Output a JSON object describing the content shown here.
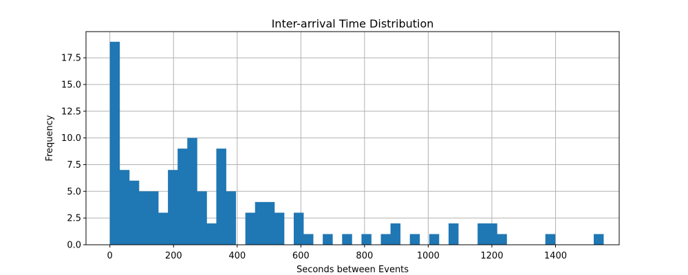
{
  "chart_data": {
    "type": "bar",
    "subtype": "histogram",
    "title": "Inter-arrival Time Distribution",
    "xlabel": "Seconds between Events",
    "ylabel": "Frequency",
    "xlim": [
      -75,
      1600
    ],
    "ylim": [
      0,
      19.95
    ],
    "xticks": [
      0,
      200,
      400,
      600,
      800,
      1000,
      1200,
      1400
    ],
    "yticks": [
      0.0,
      2.5,
      5.0,
      7.5,
      10.0,
      12.5,
      15.0,
      17.5
    ],
    "ytick_labels": [
      "0.0",
      "2.5",
      "5.0",
      "7.5",
      "10.0",
      "12.5",
      "15.0",
      "17.5"
    ],
    "grid": true,
    "bar_color": "#1f77b4",
    "bin_start": 0,
    "bin_width": 30.4,
    "values": [
      19,
      7,
      6,
      5,
      5,
      3,
      7,
      9,
      10,
      5,
      2,
      9,
      5,
      0,
      3,
      4,
      4,
      3,
      0,
      3,
      1,
      0,
      1,
      0,
      1,
      0,
      1,
      0,
      1,
      2,
      0,
      1,
      0,
      1,
      0,
      2,
      0,
      0,
      2,
      2,
      1,
      0,
      0,
      0,
      0,
      1,
      0,
      0,
      0,
      0,
      1
    ]
  }
}
